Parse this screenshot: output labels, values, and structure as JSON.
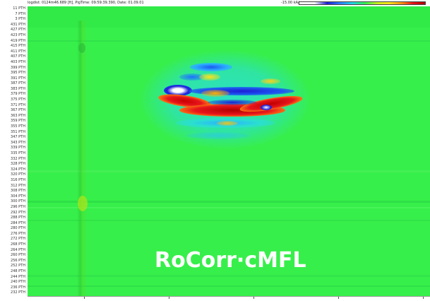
{
  "header": {
    "info_text": "logdist: 0124m46.689 [ft], PigTime: 09:59:39.390, Date: 01.09.01",
    "scale_label": "-15.00 kA/m"
  },
  "y_axis": {
    "labels": [
      "11 PTH",
      "7 PTH",
      "3 PTH",
      "431 PTH",
      "427 PTH",
      "423 PTH",
      "419 PTH",
      "415 PTH",
      "411 PTH",
      "407 PTH",
      "403 PTH",
      "399 PTH",
      "395 PTH",
      "391 PTH",
      "387 PTH",
      "383 PTH",
      "379 PTH",
      "375 PTH",
      "371 PTH",
      "367 PTH",
      "363 PTH",
      "359 PTH",
      "355 PTH",
      "351 PTH",
      "347 PTH",
      "343 PTH",
      "339 PTH",
      "335 PTH",
      "332 PTH",
      "328 PTH",
      "324 PTH",
      "320 PTH",
      "316 PTH",
      "312 PTH",
      "308 PTH",
      "304 PTH",
      "300 PTH",
      "296 PTH",
      "292 PTH",
      "288 PTH",
      "284 PTH",
      "280 PTH",
      "276 PTH",
      "272 PTH",
      "268 PTH",
      "264 PTH",
      "260 PTH",
      "256 PTH",
      "252 PTH",
      "248 PTH",
      "244 PTH",
      "240 PTH",
      "236 PTH",
      "232 PTH"
    ]
  },
  "colors": {
    "background_field": "#37ef4a",
    "defect_high": "#e8161c",
    "defect_low": "#1d1dd6",
    "watermark": "#ffffff"
  },
  "watermark": {
    "text": "RoCorr·cMFL"
  }
}
